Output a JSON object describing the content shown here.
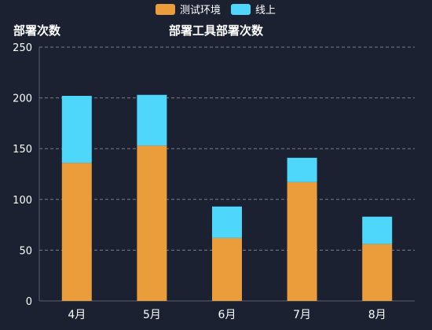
{
  "chart_data": {
    "type": "bar",
    "stacked": true,
    "title": "部署工具部署次数",
    "ylabel": "部署次数",
    "xlabel": "",
    "categories": [
      "4月",
      "5月",
      "6月",
      "7月",
      "8月"
    ],
    "series": [
      {
        "name": "测试环境",
        "values": [
          136,
          153,
          62,
          117,
          56
        ],
        "color": "#eb9d3c"
      },
      {
        "name": "线上",
        "values": [
          66,
          50,
          31,
          24,
          27
        ],
        "color": "#4fd6fb"
      }
    ],
    "ylim": [
      0,
      250
    ],
    "yticks": [
      "0",
      "50",
      "100",
      "150",
      "200",
      "250"
    ],
    "grid": true,
    "legend_position": "top-center",
    "colors": {
      "background": "#1b2130",
      "text": "#ffffff",
      "grid": "#7a808c",
      "axis": "#5a606c"
    }
  }
}
